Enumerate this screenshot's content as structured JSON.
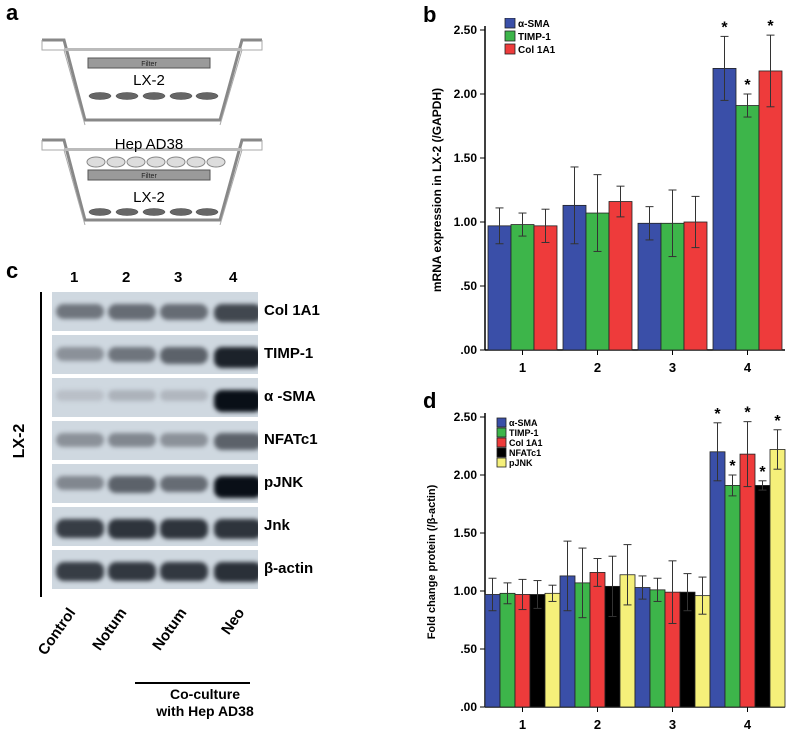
{
  "panel_labels": {
    "a": "a",
    "b": "b",
    "c": "c",
    "d": "d"
  },
  "panel_a": {
    "top_cell": "LX-2",
    "bottom_cell_upper": "Hep AD38",
    "bottom_cell_lower": "LX-2",
    "filter_label": "Filter"
  },
  "panel_c": {
    "lanes": [
      "1",
      "2",
      "3",
      "4"
    ],
    "side_label": "LX-2",
    "bands": [
      "Col 1A1",
      "TIMP-1",
      "α -SMA",
      "NFATc1",
      "pJNK",
      "Jnk",
      "β-actin"
    ],
    "intensity": [
      [
        0.45,
        0.5,
        0.5,
        0.7
      ],
      [
        0.3,
        0.45,
        0.55,
        0.9
      ],
      [
        0.05,
        0.12,
        0.1,
        1.0
      ],
      [
        0.3,
        0.35,
        0.3,
        0.55
      ],
      [
        0.35,
        0.55,
        0.5,
        1.0
      ],
      [
        0.75,
        0.8,
        0.8,
        0.8
      ],
      [
        0.75,
        0.78,
        0.78,
        0.82
      ]
    ],
    "conditions": [
      "Control",
      "Notum",
      "Notum",
      "Neo"
    ],
    "group_label_line1": "Co-culture",
    "group_label_line2": "with Hep AD38"
  },
  "chart_data": [
    {
      "panel": "b",
      "type": "bar",
      "ylabel": "mRNA expression in LX-2 (/GAPDH)",
      "xlabel": "",
      "categories": [
        "1",
        "2",
        "3",
        "4"
      ],
      "ylim": [
        0,
        2.5
      ],
      "yticks": [
        ".00",
        ".50",
        "1.00",
        "1.50",
        "2.00",
        "2.50"
      ],
      "legend_position": "top-left",
      "series": [
        {
          "name": "α-SMA",
          "color": "#3a4fa8",
          "values": [
            0.97,
            1.13,
            0.99,
            2.2
          ],
          "errors": [
            0.14,
            0.3,
            0.13,
            0.25
          ],
          "significant": [
            false,
            false,
            false,
            true
          ]
        },
        {
          "name": "TIMP-1",
          "color": "#3db54a",
          "values": [
            0.98,
            1.07,
            0.99,
            1.91
          ],
          "errors": [
            0.09,
            0.3,
            0.26,
            0.09
          ],
          "significant": [
            false,
            false,
            false,
            true
          ]
        },
        {
          "name": "Col 1A1",
          "color": "#ee3b3b",
          "values": [
            0.97,
            1.16,
            1.0,
            2.18
          ],
          "errors": [
            0.13,
            0.12,
            0.2,
            0.28
          ],
          "significant": [
            false,
            false,
            false,
            true
          ]
        }
      ],
      "significance_mark": "*"
    },
    {
      "panel": "d",
      "type": "bar",
      "ylabel": "Fold change protein (/β-actin)",
      "xlabel": "",
      "categories": [
        "1",
        "2",
        "3",
        "4"
      ],
      "ylim": [
        0,
        2.5
      ],
      "yticks": [
        ".00",
        ".50",
        "1.00",
        "1.50",
        "2.00",
        "2.50"
      ],
      "legend_position": "top-left",
      "series": [
        {
          "name": "α-SMA",
          "color": "#3a4fa8",
          "values": [
            0.97,
            1.13,
            1.03,
            2.2
          ],
          "errors": [
            0.14,
            0.3,
            0.1,
            0.25
          ],
          "significant": [
            false,
            false,
            false,
            true
          ]
        },
        {
          "name": "TIMP-1",
          "color": "#3db54a",
          "values": [
            0.98,
            1.07,
            1.01,
            1.91
          ],
          "errors": [
            0.09,
            0.3,
            0.1,
            0.09
          ],
          "significant": [
            false,
            false,
            false,
            true
          ]
        },
        {
          "name": "Col 1A1",
          "color": "#ee3b3b",
          "values": [
            0.97,
            1.16,
            0.99,
            2.18
          ],
          "errors": [
            0.13,
            0.12,
            0.27,
            0.28
          ],
          "significant": [
            false,
            false,
            false,
            true
          ]
        },
        {
          "name": "NFATc1",
          "color": "#000000",
          "values": [
            0.97,
            1.04,
            0.99,
            1.91
          ],
          "errors": [
            0.12,
            0.26,
            0.16,
            0.04
          ],
          "significant": [
            false,
            false,
            false,
            true
          ]
        },
        {
          "name": "pJNK",
          "color": "#f5f07a",
          "values": [
            0.98,
            1.14,
            0.96,
            2.22
          ],
          "errors": [
            0.07,
            0.26,
            0.16,
            0.17
          ],
          "significant": [
            false,
            false,
            false,
            true
          ]
        }
      ],
      "significance_mark": "*"
    }
  ]
}
